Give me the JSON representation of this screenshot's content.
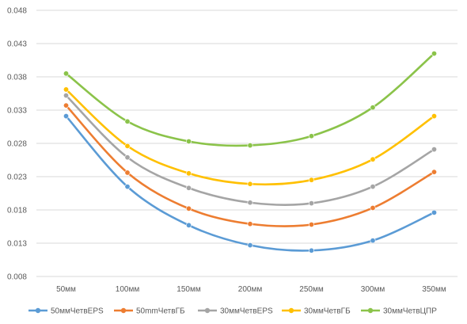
{
  "chart_data": {
    "type": "line",
    "title": "",
    "xlabel": "",
    "ylabel": "",
    "categories": [
      "50мм",
      "100мм",
      "150мм",
      "200мм",
      "250мм",
      "300мм",
      "350мм"
    ],
    "y_ticks": [
      "0.008",
      "0.013",
      "0.018",
      "0.023",
      "0.028",
      "0.033",
      "0.038",
      "0.043",
      "0.048"
    ],
    "ylim": [
      0.008,
      0.048
    ],
    "grid": true,
    "smooth": true,
    "legend_position": "bottom",
    "series": [
      {
        "name": "50ммЧетвEPS",
        "color": "#5B9BD5",
        "values": [
          0.0321,
          0.0215,
          0.0157,
          0.0127,
          0.0119,
          0.0134,
          0.0176
        ]
      },
      {
        "name": "50mmЧетвГБ",
        "color": "#ED7D31",
        "values": [
          0.0337,
          0.0236,
          0.0182,
          0.0159,
          0.0158,
          0.0183,
          0.0237
        ]
      },
      {
        "name": "30ммЧетвEPS",
        "color": "#A5A5A5",
        "values": [
          0.0352,
          0.0259,
          0.0213,
          0.0191,
          0.019,
          0.0215,
          0.0271
        ]
      },
      {
        "name": "30ммЧетвГБ",
        "color": "#FFC000",
        "values": [
          0.0361,
          0.0276,
          0.0235,
          0.0219,
          0.0225,
          0.0256,
          0.0321
        ]
      },
      {
        "name": "30ммЧетвЦПР",
        "color": "#8BC34A",
        "values": [
          0.0385,
          0.0313,
          0.0283,
          0.0277,
          0.0291,
          0.0334,
          0.0415
        ]
      }
    ]
  }
}
